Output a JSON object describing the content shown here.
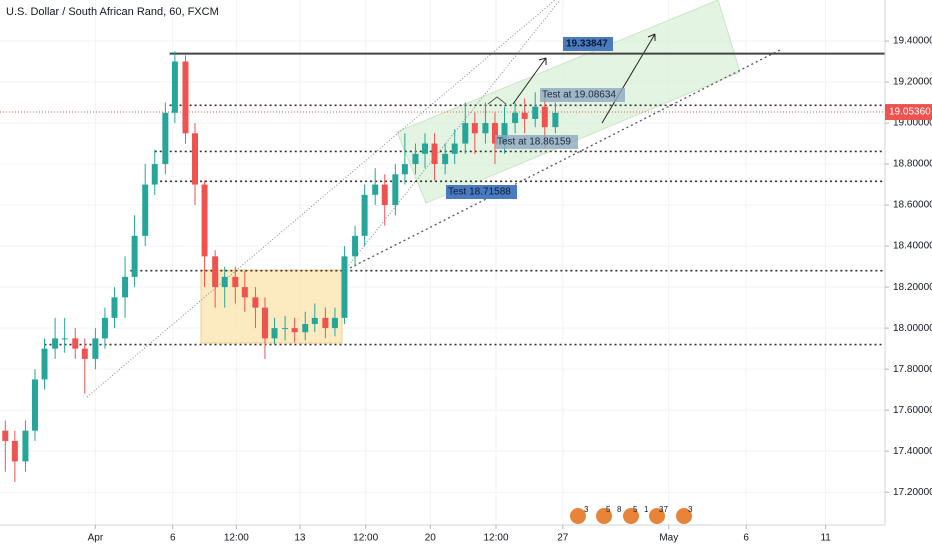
{
  "chart_data": {
    "type": "candlestick",
    "title": "U.S. Dollar / South African Rand, 60, FXCM",
    "up_color": "#26a69a",
    "down_color": "#ef5350",
    "grid": true,
    "xlim": [
      0,
      835
    ],
    "xticks": [
      {
        "value": 90,
        "label": "Apr"
      },
      {
        "value": 163,
        "label": "6"
      },
      {
        "value": 223,
        "label": "12:00"
      },
      {
        "value": 283,
        "label": "13"
      },
      {
        "value": 345,
        "label": "12:00"
      },
      {
        "value": 406,
        "label": "20"
      },
      {
        "value": 468,
        "label": "12:00"
      },
      {
        "value": 531,
        "label": "27"
      },
      {
        "value": 631,
        "label": "May"
      },
      {
        "value": 704,
        "label": "6"
      },
      {
        "value": 779,
        "label": "11"
      }
    ],
    "ylim": [
      17.04,
      19.6
    ],
    "yticks": [
      {
        "value": 17.2,
        "label": "17.20000"
      },
      {
        "value": 17.4,
        "label": "17.40000"
      },
      {
        "value": 17.6,
        "label": "17.60000"
      },
      {
        "value": 17.8,
        "label": "17.80000"
      },
      {
        "value": 18.0,
        "label": "18.00000"
      },
      {
        "value": 18.2,
        "label": "18.20000"
      },
      {
        "value": 18.4,
        "label": "18.40000"
      },
      {
        "value": 18.6,
        "label": "18.60000"
      },
      {
        "value": 18.8,
        "label": "18.80000"
      },
      {
        "value": 19.0,
        "label": "19.00000"
      },
      {
        "value": 19.2,
        "label": "19.20000"
      },
      {
        "value": 19.4,
        "label": "19.40000"
      }
    ],
    "x": [
      5,
      14,
      24,
      33,
      42,
      52,
      61,
      71,
      80,
      90,
      99,
      108,
      118,
      127,
      137,
      146,
      156,
      165,
      175,
      184,
      193,
      203,
      212,
      222,
      231,
      241,
      250,
      259,
      269,
      278,
      288,
      297,
      307,
      316,
      325,
      335,
      344,
      354,
      363,
      373,
      382,
      392,
      401,
      410,
      420,
      429,
      439,
      448,
      458,
      467,
      476,
      486,
      495,
      505,
      514,
      524
    ],
    "open": [
      17.5,
      17.45,
      17.35,
      17.5,
      17.75,
      17.9,
      17.95,
      17.95,
      17.9,
      17.85,
      17.95,
      18.05,
      18.15,
      18.25,
      18.45,
      18.7,
      18.8,
      19.05,
      19.3,
      18.95,
      18.7,
      18.35,
      18.2,
      18.25,
      18.2,
      18.15,
      18.1,
      17.95,
      18.0,
      18.0,
      17.98,
      18.02,
      18.05,
      18.0,
      18.05,
      18.35,
      18.45,
      18.65,
      18.7,
      18.6,
      18.75,
      18.8,
      18.85,
      18.9,
      18.8,
      18.85,
      18.9,
      19.0,
      18.95,
      19.0,
      18.9,
      19.0,
      19.05,
      19.02,
      19.08,
      18.98
    ],
    "high": [
      17.55,
      17.5,
      17.55,
      17.8,
      17.95,
      18.05,
      18.05,
      18.0,
      17.95,
      18.0,
      18.1,
      18.2,
      18.35,
      18.55,
      18.8,
      18.87,
      19.1,
      19.35,
      19.33,
      19.0,
      18.72,
      18.38,
      18.3,
      18.3,
      18.28,
      18.2,
      18.15,
      18.05,
      18.06,
      18.05,
      18.08,
      18.12,
      18.1,
      18.1,
      18.4,
      18.5,
      18.7,
      18.78,
      18.75,
      18.8,
      18.95,
      18.9,
      18.95,
      18.95,
      18.9,
      18.97,
      19.1,
      19.05,
      19.1,
      19.05,
      19.08,
      19.1,
      19.12,
      19.15,
      19.12,
      19.1
    ],
    "low": [
      17.3,
      17.25,
      17.3,
      17.45,
      17.7,
      17.85,
      17.88,
      17.85,
      17.68,
      17.8,
      17.9,
      18.0,
      18.05,
      18.2,
      18.4,
      18.65,
      18.75,
      19.0,
      18.9,
      18.6,
      18.2,
      18.1,
      18.1,
      18.12,
      18.08,
      18.0,
      17.85,
      17.92,
      17.94,
      17.93,
      17.94,
      17.98,
      17.95,
      17.96,
      18.02,
      18.3,
      18.4,
      18.6,
      18.5,
      18.55,
      18.7,
      18.75,
      18.78,
      18.72,
      18.75,
      18.8,
      18.85,
      18.85,
      18.9,
      18.8,
      18.85,
      18.95,
      18.95,
      18.98,
      18.88,
      18.95
    ],
    "close": [
      17.45,
      17.35,
      17.5,
      17.75,
      17.9,
      17.95,
      17.95,
      17.9,
      17.85,
      17.95,
      18.05,
      18.15,
      18.25,
      18.45,
      18.7,
      18.8,
      19.05,
      19.3,
      18.95,
      18.7,
      18.35,
      18.2,
      18.25,
      18.2,
      18.15,
      18.1,
      17.95,
      18.0,
      18.0,
      17.98,
      18.02,
      18.05,
      18.0,
      18.05,
      18.35,
      18.45,
      18.65,
      18.7,
      18.6,
      18.75,
      18.8,
      18.85,
      18.9,
      18.8,
      18.85,
      18.9,
      19.0,
      18.95,
      19.0,
      18.9,
      19.0,
      19.05,
      19.02,
      19.08,
      18.98,
      19.05
    ],
    "levels": [
      {
        "value": 19.33847,
        "start": 160,
        "style": "solid"
      },
      {
        "value": 19.08634,
        "start": 160,
        "style": "dotted"
      },
      {
        "value": 18.86159,
        "start": 146,
        "style": "dotted"
      },
      {
        "value": 18.71588,
        "start": 151,
        "style": "dotted"
      },
      {
        "value": 18.28,
        "start": 123,
        "style": "dotted"
      },
      {
        "value": 17.92,
        "start": 42,
        "style": "dotted"
      }
    ],
    "price_label": {
      "value": 19.0536,
      "label": "19.05360"
    },
    "annotations": [
      "19.33847",
      "Test at 19.08634",
      "Test at 18.86159",
      "Test 18.71588"
    ],
    "events": [
      "3",
      "5",
      "8",
      "5",
      "1",
      "37",
      "3"
    ]
  }
}
